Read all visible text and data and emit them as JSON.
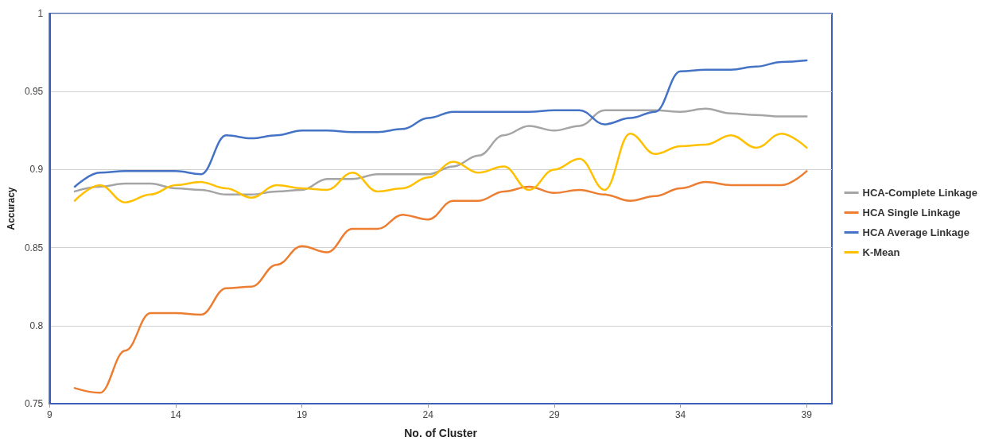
{
  "chart_data": {
    "type": "line",
    "xlabel": "No. of Cluster",
    "ylabel": "Accuracy",
    "x": [
      10,
      11,
      12,
      13,
      14,
      15,
      16,
      17,
      18,
      19,
      20,
      21,
      22,
      23,
      24,
      25,
      26,
      27,
      28,
      29,
      30,
      31,
      32,
      33,
      34,
      35,
      36,
      37,
      38,
      39
    ],
    "series": [
      {
        "name": "HCA-Complete Linkage",
        "color": "#a5a5a5",
        "values": [
          0.886,
          0.889,
          0.891,
          0.891,
          0.888,
          0.887,
          0.884,
          0.884,
          0.886,
          0.887,
          0.894,
          0.894,
          0.897,
          0.897,
          0.897,
          0.902,
          0.909,
          0.922,
          0.928,
          0.925,
          0.928,
          0.938,
          0.938,
          0.938,
          0.937,
          0.939,
          0.936,
          0.935,
          0.934,
          0.934
        ]
      },
      {
        "name": "HCA Single Linkage",
        "color": "#ed7d31",
        "values": [
          0.76,
          0.757,
          0.784,
          0.808,
          0.808,
          0.807,
          0.824,
          0.825,
          0.839,
          0.851,
          0.847,
          0.862,
          0.862,
          0.871,
          0.868,
          0.88,
          0.88,
          0.886,
          0.889,
          0.885,
          0.887,
          0.884,
          0.88,
          0.883,
          0.888,
          0.892,
          0.89,
          0.89,
          0.89,
          0.899
        ]
      },
      {
        "name": "HCA Average Linkage",
        "color": "#4472c4",
        "values": [
          0.889,
          0.898,
          0.899,
          0.899,
          0.899,
          0.897,
          0.922,
          0.92,
          0.922,
          0.925,
          0.925,
          0.924,
          0.924,
          0.926,
          0.933,
          0.937,
          0.937,
          0.937,
          0.937,
          0.938,
          0.938,
          0.929,
          0.933,
          0.937,
          0.963,
          0.964,
          0.964,
          0.966,
          0.969,
          0.97
        ]
      },
      {
        "name": "K-Mean",
        "color": "#ffc000",
        "values": [
          0.88,
          0.89,
          0.879,
          0.884,
          0.89,
          0.892,
          0.888,
          0.882,
          0.89,
          0.888,
          0.887,
          0.898,
          0.886,
          0.888,
          0.895,
          0.905,
          0.898,
          0.902,
          0.887,
          0.9,
          0.907,
          0.887,
          0.923,
          0.91,
          0.915,
          0.916,
          0.922,
          0.914,
          0.923,
          0.914
        ]
      }
    ],
    "xlim": [
      9,
      40
    ],
    "xticks": [
      9,
      14,
      19,
      24,
      29,
      34,
      39
    ],
    "ylim": [
      0.75,
      1
    ],
    "yticks": [
      0.75,
      0.8,
      0.85,
      0.9,
      0.95,
      1
    ],
    "grid": "y",
    "legend": "right",
    "marker": "none",
    "line_style": "solid"
  }
}
